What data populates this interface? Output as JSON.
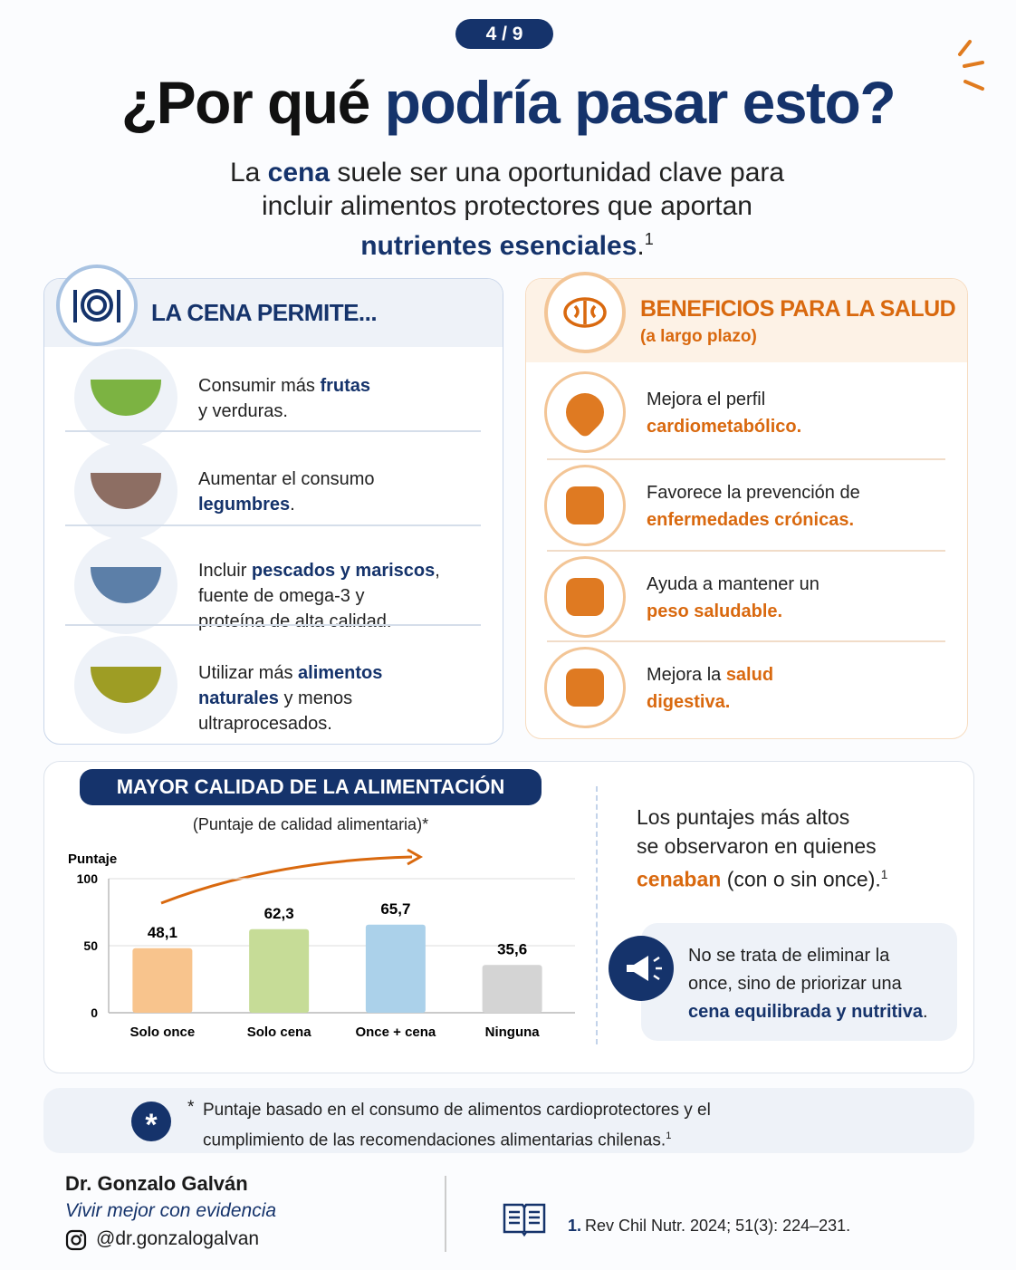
{
  "header": {
    "badge": "4 / 9",
    "title": [
      "¿Por qué ",
      "podría pasar esto?"
    ],
    "intro": [
      "La ",
      "cena",
      " suele ser una oportunidad clave para\nincluir alimentos protectores que aportan\n",
      "nutrientes esenciales",
      "."
    ],
    "intro_ref": "1"
  },
  "left_panel": {
    "title": "LA CENA PERMITE...",
    "items": [
      [
        "Consumir más ",
        "frutas",
        "\ny verduras."
      ],
      [
        "Aumentar el consumo\n",
        "legumbres",
        "."
      ],
      [
        "Incluir ",
        "pescados y mariscos",
        ",\nfuente de omega-3 y\nproteína de alta calidad."
      ],
      [
        "Utilizar más ",
        "alimentos\nnaturales",
        " y menos\nultraprocesados."
      ]
    ]
  },
  "right_panel": {
    "title": "BENEFICIOS PARA LA SALUD",
    "subtitle": "(a largo plazo)",
    "items": [
      [
        "Mejora el perfil\n",
        "cardiometabólico."
      ],
      [
        "Favorece la prevención de\n",
        "enfermedades crónicas."
      ],
      [
        "Ayuda a mantener un\n",
        "peso saludable."
      ],
      [
        "Mejora la ",
        "salud\ndigestiva."
      ]
    ]
  },
  "chart_data": {
    "type": "bar",
    "title": "MAYOR CALIDAD DE LA ALIMENTACIÓN",
    "subtitle": "(Puntaje de calidad alimentaria)*",
    "y_label": "Puntaje",
    "categories": [
      "Solo once",
      "Solo cena",
      "Once + cena",
      "Ninguna"
    ],
    "values": [
      48.1,
      62.3,
      65.7,
      35.6
    ],
    "value_labels": [
      "48,1",
      "62,3",
      "65,7",
      "35,6"
    ],
    "colors": [
      "#f8c48d",
      "#c6dc97",
      "#abd1ea",
      "#d4d4d4"
    ],
    "ylim": [
      0,
      100
    ],
    "yticks": [
      0,
      50,
      100
    ],
    "grid": true
  },
  "chart_notes": {
    "finding": [
      "Los puntajes más altos\nse observaron en quienes\n",
      "cenaban",
      " (con o sin once)."
    ],
    "finding_ref": "1",
    "callout": [
      "No se trata de eliminar la\nonce, sino de priorizar una\n",
      "cena equilibrada y nutritiva",
      "."
    ]
  },
  "footnote": {
    "mark": "*",
    "text": "Puntaje basado en el consumo de alimentos cardioprotectores y el\ncumplimiento de las recomendaciones alimentarias chilenas.",
    "ref": "1"
  },
  "footer": {
    "author": "Dr. Gonzalo Galván",
    "tagline": "Vivir mejor con evidencia",
    "handle": "@dr.gonzalogalvan",
    "reference_number": "1.",
    "reference": "Rev Chil Nutr. 2024; 51(3): 224–231."
  }
}
